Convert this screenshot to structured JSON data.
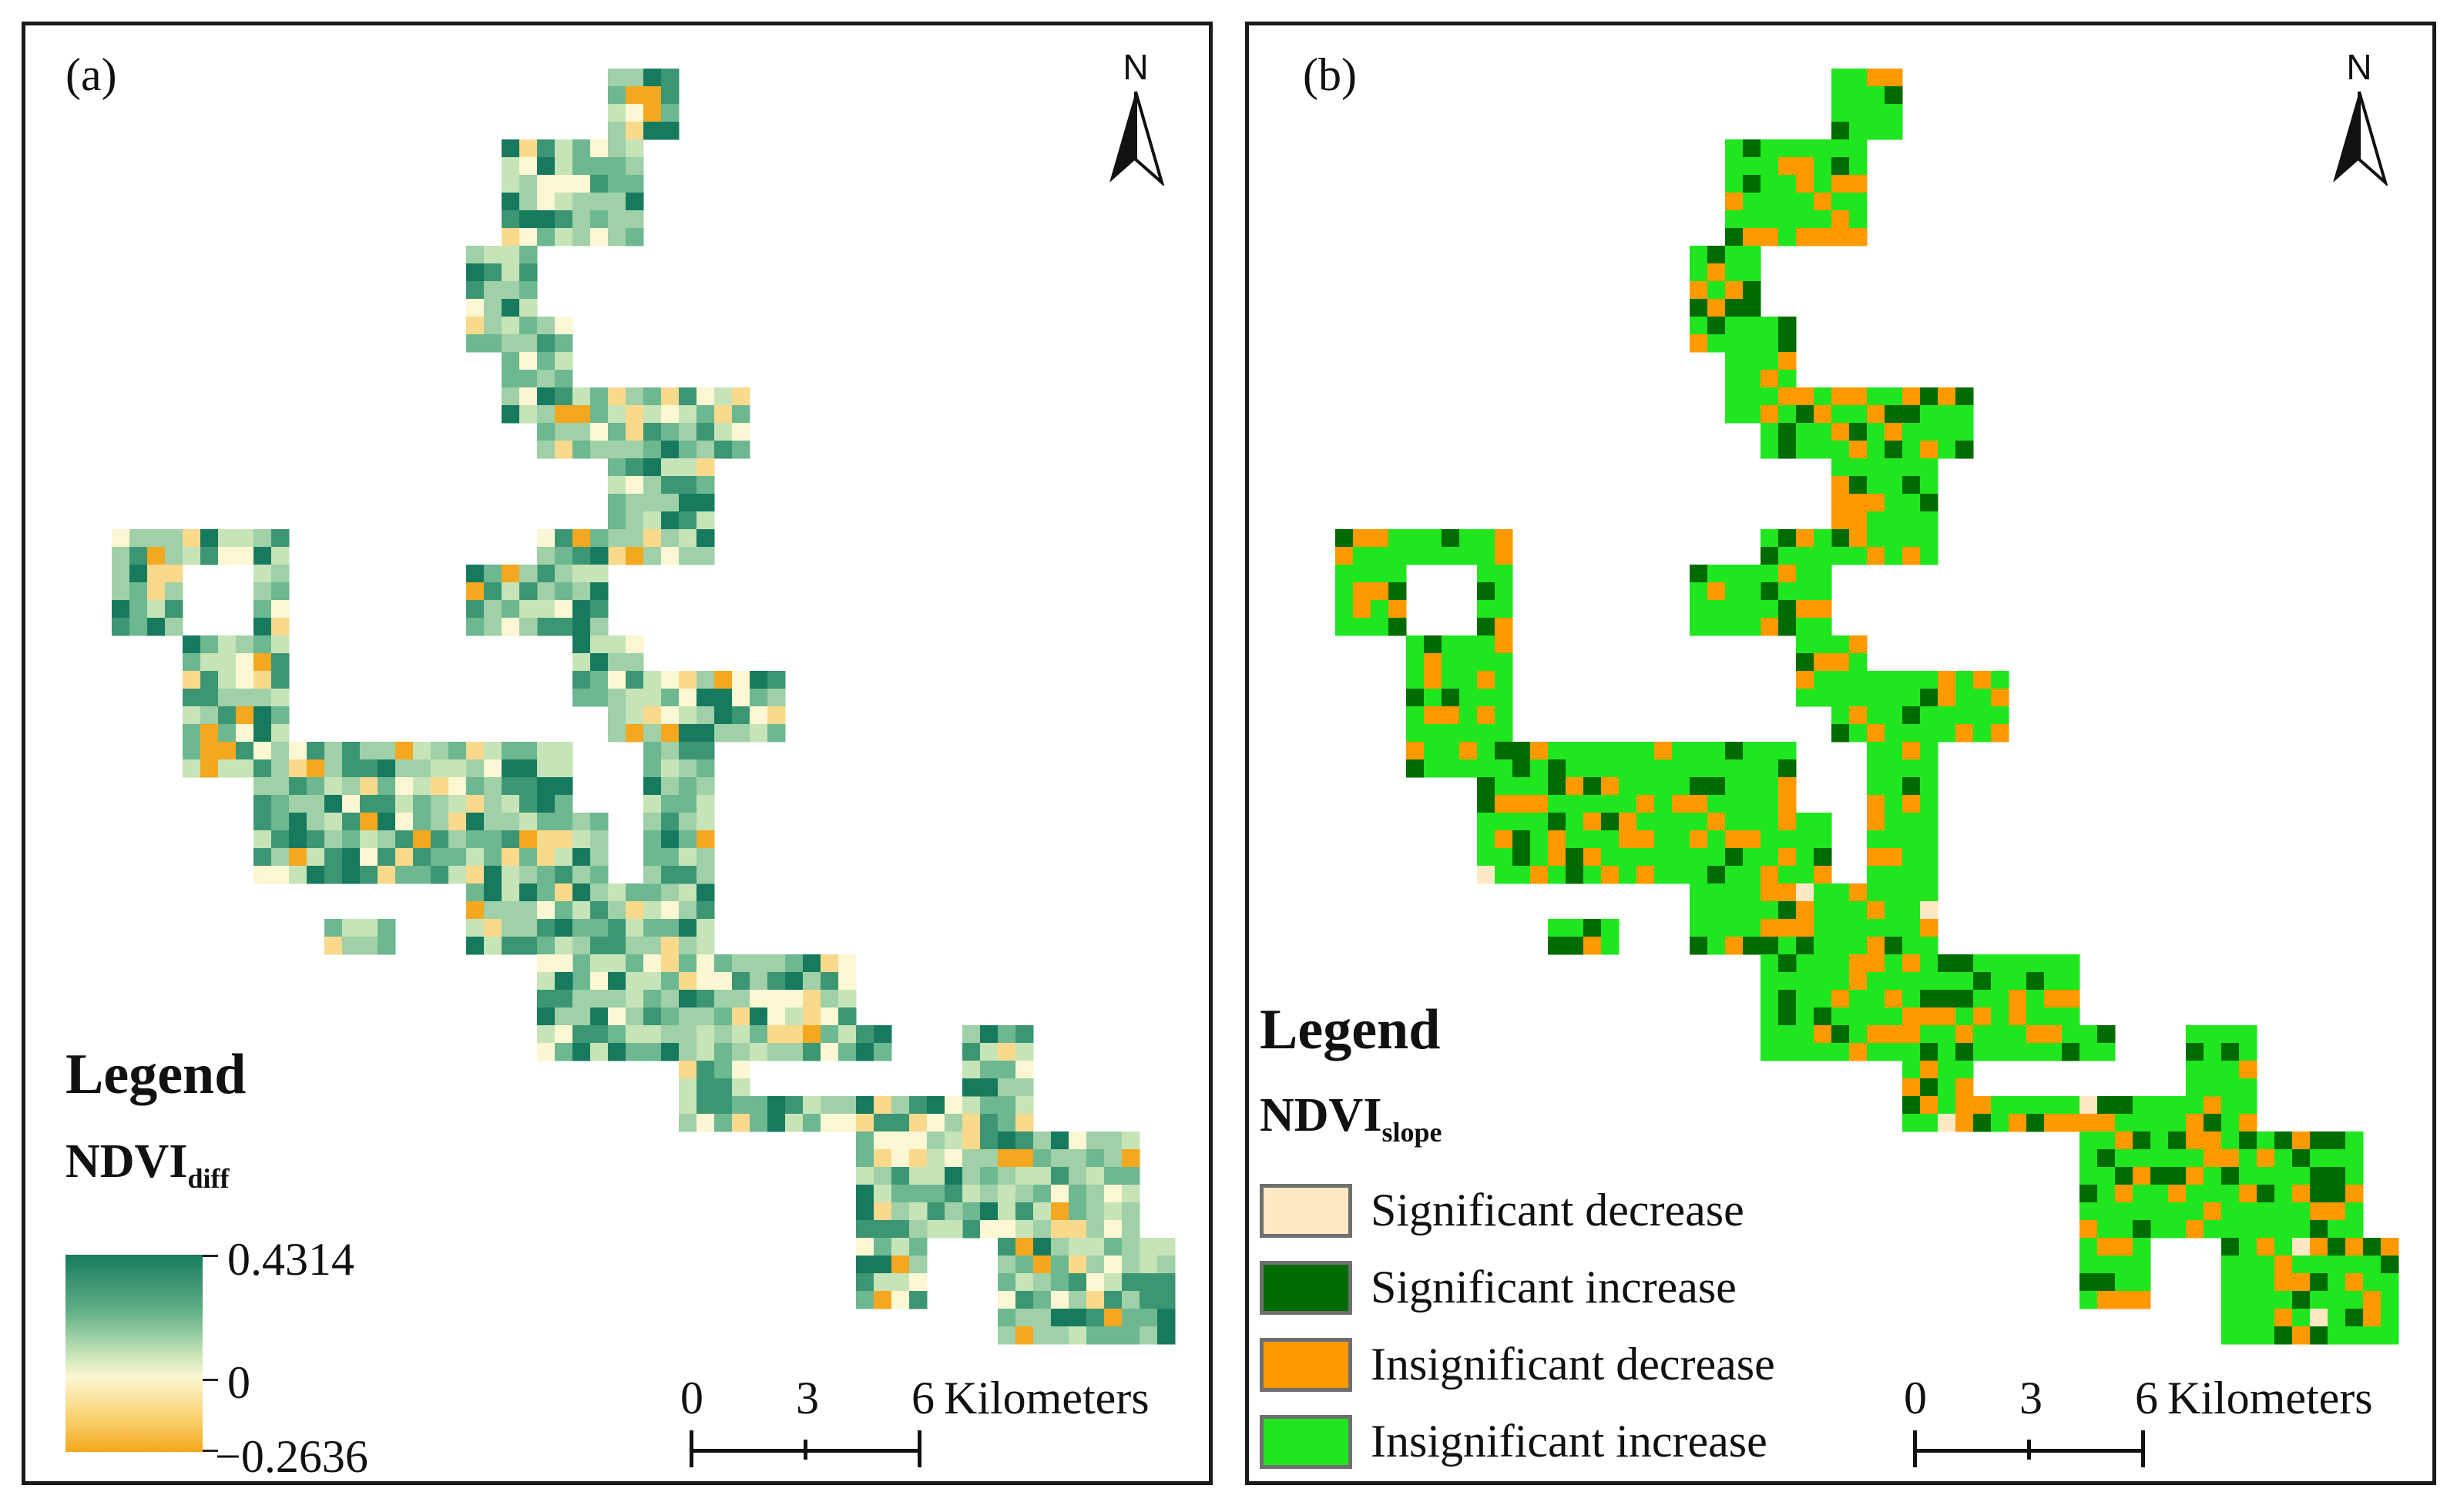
{
  "panel_a": {
    "label": "(a)",
    "north": "N",
    "legend": {
      "title": "Legend",
      "variable": "NDVI",
      "variable_sub": "diff",
      "max_value": "0.4314",
      "mid_value": "0",
      "min_value": "−0.2636",
      "colors": {
        "high": "#177a5f",
        "mid": "#fbf7d3",
        "low": "#f4a81f"
      }
    },
    "scale": {
      "zero": "0",
      "mid": "3",
      "max": "6",
      "unit": "Kilometers"
    }
  },
  "panel_b": {
    "label": "(b)",
    "north": "N",
    "legend": {
      "title": "Legend",
      "variable": "NDVI",
      "variable_sub": "slope",
      "classes": [
        {
          "label": "Significant decrease",
          "color": "#ffe9c4"
        },
        {
          "label": "Significant increase",
          "color": "#006b00"
        },
        {
          "label": "Insignificant decrease",
          "color": "#ff9900"
        },
        {
          "label": "Insignificant increase",
          "color": "#1fe61f"
        }
      ]
    },
    "scale": {
      "zero": "0",
      "mid": "3",
      "max": "6",
      "unit": "Kilometers"
    }
  }
}
